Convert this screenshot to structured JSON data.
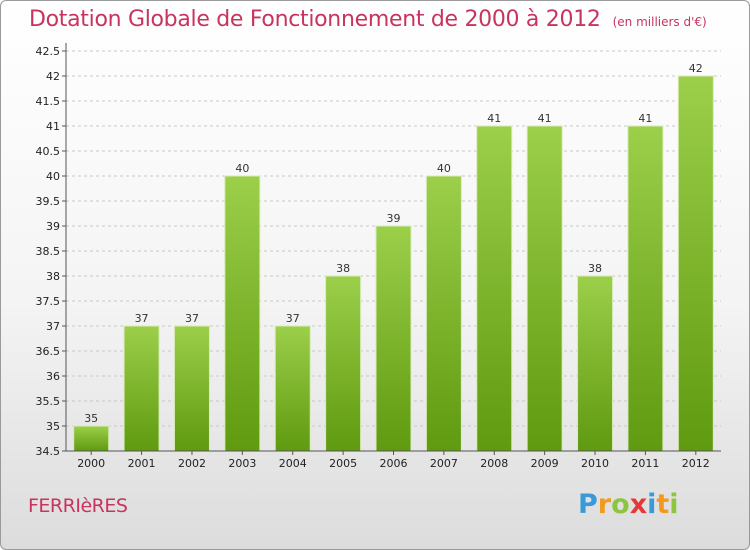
{
  "chart_data": {
    "type": "bar",
    "title": "Dotation Globale de Fonctionnement de 2000 à 2012",
    "subtitle": "(en milliers d'€)",
    "categories": [
      "2000",
      "2001",
      "2002",
      "2003",
      "2004",
      "2005",
      "2006",
      "2007",
      "2008",
      "2009",
      "2010",
      "2011",
      "2012"
    ],
    "values": [
      35,
      37,
      37,
      40,
      37,
      38,
      39,
      40,
      41,
      41,
      38,
      41,
      42
    ],
    "data_labels": [
      "35",
      "37",
      "37",
      "40",
      "37",
      "38",
      "39",
      "40",
      "41",
      "41",
      "38",
      "41",
      "42"
    ],
    "ylim": [
      34.5,
      42.5
    ],
    "yticks": [
      34.5,
      35,
      35.5,
      36,
      36.5,
      37,
      37.5,
      38,
      38.5,
      39,
      39.5,
      40,
      40.5,
      41,
      41.5,
      42,
      42.5
    ],
    "ytick_labels": [
      "34.5",
      "35",
      "35.5",
      "36",
      "36.5",
      "37",
      "37.5",
      "38",
      "38.5",
      "39",
      "39.5",
      "40",
      "40.5",
      "41",
      "41.5",
      "42",
      "42.5"
    ],
    "grid": true,
    "bar_color_top": "#9ccf4a",
    "bar_color_bottom": "#5f9a10"
  },
  "footer": {
    "commune": "FERRIèRES",
    "logo_letters": [
      "P",
      "r",
      "o",
      "x",
      "i",
      "t",
      "i"
    ],
    "logo_colors": [
      "#3a9ad9",
      "#f39a1e",
      "#8cc63f",
      "#e23a3a",
      "#3a9ad9",
      "#f39a1e",
      "#8cc63f"
    ]
  }
}
